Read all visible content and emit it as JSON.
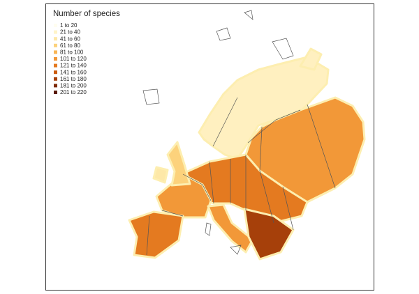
{
  "legend": {
    "title": "Number of species",
    "items": [
      {
        "label": "1 to 20",
        "color": "#fffdf0"
      },
      {
        "label": "21 to 40",
        "color": "#fff4c8"
      },
      {
        "label": "41 to 60",
        "color": "#fde8a8"
      },
      {
        "label": "61 to 80",
        "color": "#fcd27c"
      },
      {
        "label": "81 to 100",
        "color": "#f9b656"
      },
      {
        "label": "101 to 120",
        "color": "#f29838"
      },
      {
        "label": "121 to 140",
        "color": "#e47a20"
      },
      {
        "label": "141 to 160",
        "color": "#cc5c10"
      },
      {
        "label": "161 to 180",
        "color": "#a6400a"
      },
      {
        "label": "181 to 200",
        "color": "#7e2b07"
      },
      {
        "label": "201 to 220",
        "color": "#591a04"
      }
    ]
  }
}
